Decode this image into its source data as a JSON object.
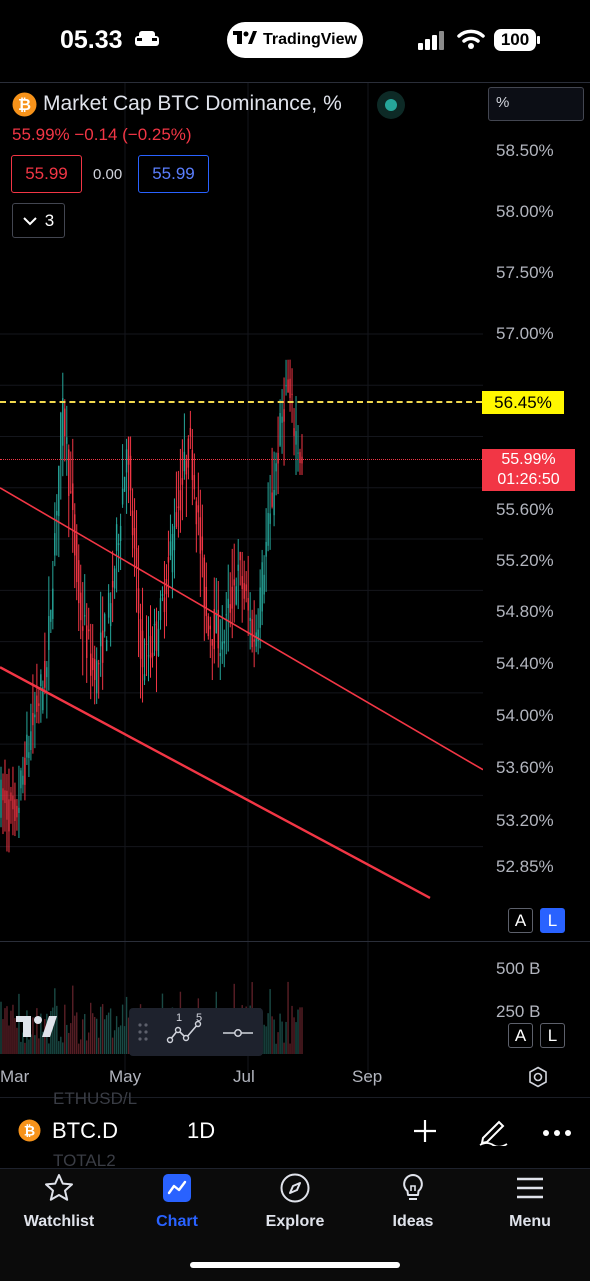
{
  "status": {
    "time": "05.33",
    "app_pill": "TradingView",
    "battery": "100"
  },
  "chart_header": {
    "title": "Market Cap BTC Dominance, %",
    "quote": "55.99%  −0.14 (−0.25%)",
    "sell_price": "55.99",
    "spread": "0.00",
    "buy_price": "55.99",
    "indicators_count": "3",
    "unit_selector": "%"
  },
  "price_axis": {
    "labels": [
      "58.50%",
      "58.00%",
      "57.50%",
      "57.00%",
      "55.60%",
      "55.20%",
      "54.80%",
      "54.40%",
      "54.00%",
      "53.60%",
      "53.20%",
      "52.85%"
    ],
    "alert_line_label": "56.45%",
    "last_price_label": "55.99%",
    "countdown": "01:26:50",
    "auto_button": "A",
    "log_button": "L"
  },
  "volume_axis": {
    "labels": [
      "500 B",
      "250 B"
    ],
    "auto_button": "A",
    "log_button": "L"
  },
  "time_axis": {
    "labels": [
      "Mar",
      "May",
      "Jul",
      "Sep"
    ]
  },
  "drawing_panel": {
    "count_a": "1",
    "count_b": "5"
  },
  "ghost_watchlist": [
    "ETHUSD/L",
    "TOTAL2"
  ],
  "toolbar": {
    "symbol": "BTC.D",
    "interval": "1D"
  },
  "tabs": [
    {
      "label": "Watchlist",
      "icon": "star-icon"
    },
    {
      "label": "Chart",
      "icon": "chart-icon"
    },
    {
      "label": "Explore",
      "icon": "compass-icon"
    },
    {
      "label": "Ideas",
      "icon": "lightbulb-icon"
    },
    {
      "label": "Menu",
      "icon": "menu-icon"
    }
  ],
  "colors": {
    "up": "#26a69a",
    "down": "#f23645",
    "accent": "#2962ff",
    "alert": "#fff700",
    "brand_bitcoin": "#f7931a"
  },
  "chart_data": {
    "type": "candlestick",
    "y_unit": "%",
    "y_range": [
      52.85,
      58.5
    ],
    "x_labels": [
      "Mar",
      "May",
      "Jul",
      "Sep"
    ],
    "last_price": 55.99,
    "change": -0.14,
    "change_pct": -0.25,
    "alert_level": 56.45,
    "segments": [
      {
        "from": 53.4,
        "to": 53.2,
        "low": 52.95,
        "high": 54.9
      },
      {
        "from": 53.2,
        "to": 53.9,
        "low": 53.0,
        "high": 54.5
      },
      {
        "from": 53.9,
        "to": 54.4,
        "low": 53.6,
        "high": 54.8
      },
      {
        "from": 54.4,
        "to": 56.5,
        "low": 54.2,
        "high": 57.0
      },
      {
        "from": 56.5,
        "to": 54.9,
        "low": 54.6,
        "high": 56.6
      },
      {
        "from": 54.9,
        "to": 54.3,
        "low": 53.9,
        "high": 55.2
      },
      {
        "from": 54.3,
        "to": 54.9,
        "low": 54.1,
        "high": 55.2
      },
      {
        "from": 54.9,
        "to": 56.1,
        "low": 54.7,
        "high": 56.3
      },
      {
        "from": 56.1,
        "to": 54.4,
        "low": 54.0,
        "high": 56.2
      },
      {
        "from": 54.4,
        "to": 54.7,
        "low": 53.8,
        "high": 55.0
      },
      {
        "from": 54.7,
        "to": 55.5,
        "low": 54.5,
        "high": 55.8
      },
      {
        "from": 55.5,
        "to": 56.2,
        "low": 55.2,
        "high": 56.4
      },
      {
        "from": 56.2,
        "to": 54.8,
        "low": 54.3,
        "high": 56.3
      },
      {
        "from": 54.8,
        "to": 54.6,
        "low": 54.3,
        "high": 55.1
      },
      {
        "from": 54.6,
        "to": 55.2,
        "low": 54.4,
        "high": 55.4
      },
      {
        "from": 55.2,
        "to": 54.6,
        "low": 54.4,
        "high": 55.3
      },
      {
        "from": 54.6,
        "to": 55.6,
        "low": 54.5,
        "high": 55.9
      },
      {
        "from": 55.6,
        "to": 56.6,
        "low": 55.5,
        "high": 56.8
      },
      {
        "from": 56.6,
        "to": 55.99,
        "low": 55.9,
        "high": 56.8
      }
    ],
    "trendlines": [
      {
        "from": 55.8,
        "to": 53.6,
        "color": "red"
      },
      {
        "from": 54.4,
        "to": 52.6,
        "color": "red"
      }
    ]
  }
}
